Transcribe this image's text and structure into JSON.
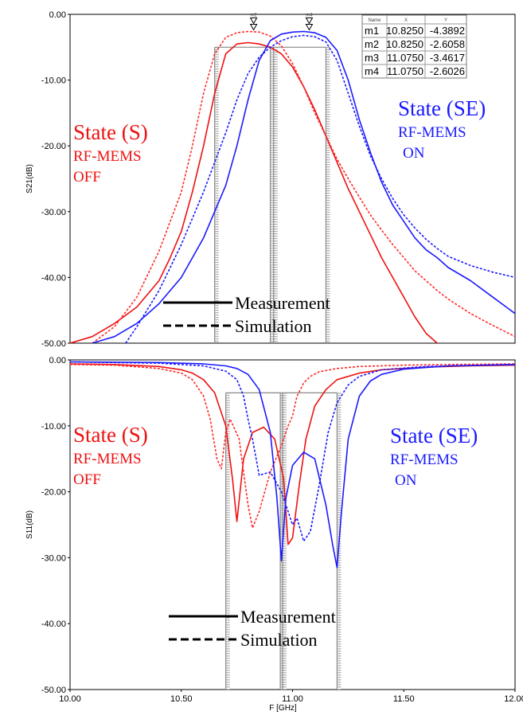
{
  "colors": {
    "sim_state_s": "#ff2a2a",
    "state_s": "#ee1111",
    "state_se": "#1a1aff",
    "frame": "#000000",
    "mask": "#888888"
  },
  "chart_data": [
    {
      "type": "line",
      "ylabel": "S21(dB)",
      "xlabel": "",
      "xlim": [
        10.0,
        12.0
      ],
      "ylim": [
        -50,
        0
      ],
      "yticks": [
        "0.00",
        "-10.00",
        "-20.00",
        "-30.00",
        "-40.00",
        "-50.00"
      ],
      "yticks_values": [
        0,
        -10,
        -20,
        -30,
        -40,
        -50
      ],
      "annotations": {
        "left": {
          "title": "State (S)",
          "line1": "RF-MEMS",
          "line2": "OFF"
        },
        "right": {
          "title": "State (SE)",
          "line1": "RF-MEMS",
          "line2": "ON"
        }
      },
      "legend": {
        "solid": "Measurement",
        "dashed": "Simulation",
        "placement": "bottom-center"
      },
      "markers": [
        {
          "label": "m2",
          "x": 10.825,
          "y": -2.6
        },
        {
          "label": "m4",
          "x": 11.075,
          "y": -2.6
        }
      ],
      "marker_table": {
        "headers": [
          "Name",
          "X",
          "Y"
        ],
        "rows": [
          [
            "m1",
            "10.8250",
            "-4.3892"
          ],
          [
            "m2",
            "10.8250",
            "-2.6058"
          ],
          [
            "m3",
            "11.0750",
            "-3.4617"
          ],
          [
            "m4",
            "11.0750",
            "-2.6026"
          ]
        ]
      },
      "mask": {
        "level": -5,
        "verticals": [
          10.65,
          10.9,
          10.915,
          11.15
        ]
      },
      "series": [
        {
          "style": "solid",
          "color": "#ee1111",
          "x": [
            10.0,
            10.1,
            10.2,
            10.3,
            10.4,
            10.45,
            10.5,
            10.55,
            10.6,
            10.65,
            10.7,
            10.75,
            10.8,
            10.85,
            10.9,
            10.95,
            11.0,
            11.05,
            11.1,
            11.15,
            11.2,
            11.25,
            11.3,
            11.35,
            11.4,
            11.45,
            11.5,
            11.55,
            11.6,
            11.65
          ],
          "y": [
            -50,
            -49,
            -47,
            -44.5,
            -40.5,
            -37,
            -33,
            -27,
            -20,
            -12,
            -6,
            -4.5,
            -4.3,
            -4.5,
            -5,
            -6,
            -8,
            -11,
            -14.5,
            -18.5,
            -22.5,
            -26.5,
            -30,
            -33.5,
            -37,
            -40,
            -43,
            -46,
            -48.5,
            -50
          ]
        },
        {
          "style": "dashed",
          "color": "#ff2a2a",
          "x": [
            10.1,
            10.2,
            10.3,
            10.4,
            10.5,
            10.55,
            10.6,
            10.65,
            10.7,
            10.75,
            10.8,
            10.85,
            10.9,
            10.95,
            11.0,
            11.05,
            11.1,
            11.15,
            11.2,
            11.25,
            11.3,
            11.35,
            11.4,
            11.45,
            11.5,
            11.55,
            11.6,
            11.65,
            11.7,
            11.8,
            11.9,
            12.0
          ],
          "y": [
            -50,
            -47.5,
            -43,
            -36,
            -27,
            -20,
            -12,
            -6,
            -3.5,
            -2.8,
            -2.6,
            -2.7,
            -3.3,
            -4.8,
            -7.5,
            -11,
            -15,
            -18.5,
            -22,
            -25,
            -27.8,
            -30.5,
            -32.8,
            -35,
            -37,
            -39,
            -40.5,
            -42,
            -43.3,
            -45.5,
            -47.3,
            -49
          ]
        },
        {
          "style": "solid",
          "color": "#1a1aff",
          "x": [
            10.1,
            10.2,
            10.3,
            10.4,
            10.5,
            10.6,
            10.7,
            10.75,
            10.8,
            10.85,
            10.9,
            10.95,
            11.0,
            11.05,
            11.1,
            11.15,
            11.2,
            11.25,
            11.3,
            11.35,
            11.4,
            11.45,
            11.5,
            11.55,
            11.6,
            11.65,
            11.7,
            11.8,
            11.9,
            12.0
          ],
          "y": [
            -50,
            -49,
            -47,
            -44,
            -40,
            -34,
            -26,
            -20,
            -13,
            -7,
            -4,
            -3,
            -2.7,
            -2.6,
            -2.8,
            -3.5,
            -5.5,
            -10,
            -16,
            -21,
            -25.5,
            -29,
            -31.5,
            -34,
            -35.8,
            -37,
            -38.5,
            -40.5,
            -43,
            -45.5
          ]
        },
        {
          "style": "dashed",
          "color": "#1a1aff",
          "x": [
            10.25,
            10.3,
            10.4,
            10.5,
            10.6,
            10.7,
            10.75,
            10.8,
            10.85,
            10.9,
            10.95,
            11.0,
            11.05,
            11.1,
            11.15,
            11.2,
            11.25,
            11.3,
            11.35,
            11.4,
            11.45,
            11.5,
            11.55,
            11.6,
            11.65,
            11.7,
            11.8,
            11.9,
            12.0
          ],
          "y": [
            -50,
            -47.5,
            -42,
            -35,
            -27,
            -18,
            -13,
            -9,
            -6.5,
            -5,
            -4,
            -3.4,
            -3.2,
            -3.4,
            -4.2,
            -7,
            -12,
            -17,
            -21.5,
            -25,
            -28,
            -30.5,
            -32.5,
            -34.2,
            -35.6,
            -36.8,
            -38.2,
            -39.2,
            -40
          ]
        }
      ]
    },
    {
      "type": "line",
      "ylabel": "S11(dB)",
      "xlabel": "F [GHz]",
      "xlim": [
        10.0,
        12.0
      ],
      "ylim": [
        -50,
        0
      ],
      "xticks": [
        "10.00",
        "10.50",
        "11.00",
        "11.50",
        "12.00"
      ],
      "xticks_values": [
        10.0,
        10.5,
        11.0,
        11.5,
        12.0
      ],
      "yticks": [
        "0.00",
        "-10.00",
        "-20.00",
        "-30.00",
        "-40.00",
        "-50.00"
      ],
      "yticks_values": [
        0,
        -10,
        -20,
        -30,
        -40,
        -50
      ],
      "annotations": {
        "left": {
          "title": "State (S)",
          "line1": "RF-MEMS",
          "line2": "OFF"
        },
        "right": {
          "title": "State (SE)",
          "line1": "RF-MEMS",
          "line2": "ON"
        }
      },
      "legend": {
        "solid": "Measurement",
        "dashed": "Simulation",
        "placement": "bottom-center"
      },
      "mask": {
        "level": -5,
        "verticals": [
          10.7,
          10.945,
          10.955,
          11.2
        ]
      },
      "series": [
        {
          "style": "solid",
          "color": "#ee1111",
          "x": [
            10.0,
            10.2,
            10.4,
            10.5,
            10.55,
            10.6,
            10.65,
            10.7,
            10.73,
            10.75,
            10.78,
            10.82,
            10.87,
            10.92,
            10.96,
            10.98,
            11.0,
            11.03,
            11.06,
            11.1,
            11.15,
            11.2,
            11.3,
            11.4,
            11.6,
            11.8,
            12.0
          ],
          "y": [
            -0.6,
            -0.7,
            -1,
            -1.5,
            -2,
            -3,
            -5,
            -10,
            -18,
            -24.5,
            -15,
            -11,
            -10.2,
            -12,
            -18,
            -28,
            -27,
            -19,
            -12,
            -7,
            -4.5,
            -3,
            -2,
            -1.5,
            -1.1,
            -0.9,
            -0.8
          ]
        },
        {
          "style": "dashed",
          "color": "#ff2a2a",
          "x": [
            10.0,
            10.2,
            10.4,
            10.5,
            10.55,
            10.6,
            10.63,
            10.66,
            10.68,
            10.7,
            10.72,
            10.76,
            10.8,
            10.82,
            10.85,
            10.9,
            10.95,
            10.98,
            11.0,
            11.02,
            11.05,
            11.08,
            11.12,
            11.2,
            11.3,
            11.5,
            11.7,
            12.0
          ],
          "y": [
            -0.7,
            -0.8,
            -1.3,
            -2,
            -3,
            -5.5,
            -9,
            -15,
            -16.5,
            -11,
            -9,
            -12,
            -22,
            -25.5,
            -23,
            -17,
            -13,
            -10,
            -8.5,
            -5.5,
            -3.5,
            -2.5,
            -1.8,
            -1.3,
            -1,
            -0.8,
            -0.7,
            -0.6
          ]
        },
        {
          "style": "solid",
          "color": "#1a1aff",
          "x": [
            10.0,
            10.4,
            10.6,
            10.7,
            10.75,
            10.8,
            10.85,
            10.9,
            10.93,
            10.95,
            10.97,
            11.0,
            11.05,
            11.1,
            11.15,
            11.18,
            11.2,
            11.22,
            11.25,
            11.3,
            11.35,
            11.4,
            11.5,
            11.7,
            12.0
          ],
          "y": [
            -0.3,
            -0.4,
            -0.6,
            -0.9,
            -1.3,
            -2.2,
            -4.5,
            -11,
            -21,
            -30.5,
            -21,
            -16,
            -14,
            -15,
            -22,
            -28,
            -31.5,
            -23,
            -12,
            -5.5,
            -3.2,
            -2.2,
            -1.4,
            -0.9,
            -0.7
          ]
        },
        {
          "style": "dashed",
          "color": "#1a1aff",
          "x": [
            10.0,
            10.4,
            10.6,
            10.7,
            10.75,
            10.78,
            10.8,
            10.82,
            10.85,
            10.9,
            10.95,
            10.98,
            11.0,
            11.02,
            11.05,
            11.08,
            11.12,
            11.16,
            11.2,
            11.25,
            11.3,
            11.4,
            11.6,
            12.0
          ],
          "y": [
            -0.3,
            -0.5,
            -0.9,
            -1.7,
            -3,
            -5.5,
            -9,
            -12,
            -17.5,
            -17,
            -20,
            -23,
            -25,
            -24,
            -27.5,
            -26,
            -19,
            -11,
            -6.5,
            -3.8,
            -2.5,
            -1.5,
            -1,
            -0.7
          ]
        }
      ]
    }
  ]
}
